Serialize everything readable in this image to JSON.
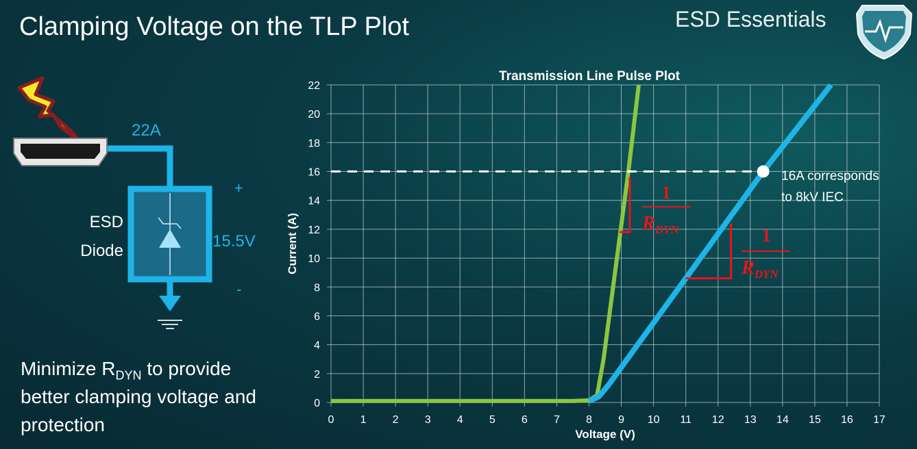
{
  "slide": {
    "title": "Clamping Voltage on the TLP Plot",
    "brand": "ESD Essentials",
    "note_prefix": "Minimize R",
    "note_sub": "DYN",
    "note_suffix": " to provide better clamping voltage and protection"
  },
  "circuit": {
    "current_label": "22A",
    "device_label_1": "ESD",
    "device_label_2": "Diode",
    "voltage_label": "15.5V",
    "plus": "+",
    "minus": "-",
    "icons": [
      "lightning-icon",
      "hdmi-connector-icon",
      "tvs-diode-icon",
      "ground-icon",
      "shield-logo-icon"
    ]
  },
  "chart_data": {
    "type": "line",
    "title": "Transmission Line Pulse Plot",
    "xlabel": "Voltage (V)",
    "ylabel": "Current (A)",
    "xlim": [
      0,
      17
    ],
    "ylim": [
      0,
      22
    ],
    "xticks": [
      0,
      1,
      2,
      3,
      4,
      5,
      6,
      7,
      8,
      9,
      10,
      11,
      12,
      13,
      14,
      15,
      16,
      17
    ],
    "yticks": [
      0,
      2,
      4,
      6,
      8,
      10,
      12,
      14,
      16,
      18,
      20,
      22
    ],
    "grid": true,
    "series": [
      {
        "color": "#8cc63f",
        "points": [
          [
            0,
            0.1
          ],
          [
            7.5,
            0.1
          ],
          [
            8.0,
            0.15
          ],
          [
            8.25,
            0.5
          ],
          [
            8.45,
            3
          ],
          [
            9.22,
            16
          ],
          [
            9.54,
            22
          ]
        ]
      },
      {
        "color": "#1eb4e8",
        "points": [
          [
            8.0,
            0.1
          ],
          [
            8.3,
            0.4
          ],
          [
            8.6,
            1.2
          ],
          [
            13.4,
            16
          ],
          [
            15.5,
            22
          ]
        ]
      }
    ],
    "reference_line": {
      "y": 16,
      "style": "dashed",
      "color": "#ffffff"
    },
    "marker": {
      "x": 13.4,
      "y": 16
    },
    "annotation": {
      "line1": "16A corresponds",
      "line2": "to 8kV IEC"
    },
    "slope_labels": [
      {
        "num": "1",
        "den": "R",
        "den_sub": "DYN"
      },
      {
        "num": "1",
        "den": "R",
        "den_sub": "DYN"
      }
    ],
    "annotation_color": "#e8141b"
  }
}
